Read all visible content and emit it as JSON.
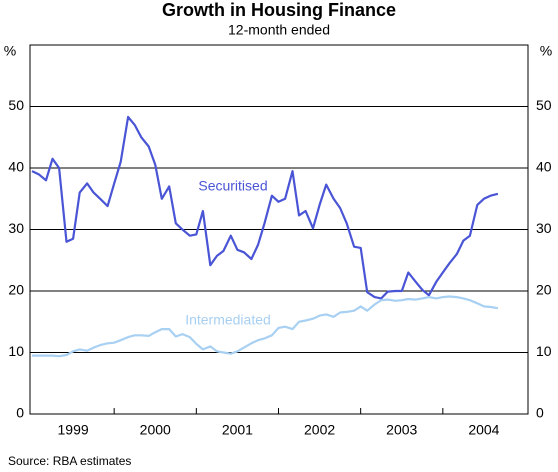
{
  "chart_data": {
    "type": "line",
    "title": "Growth in Housing Finance",
    "subtitle": "12-month ended",
    "y_unit": "%",
    "source": "Source: RBA estimates",
    "x": [
      1999,
      1999.08,
      1999.17,
      1999.25,
      1999.33,
      1999.42,
      1999.5,
      1999.58,
      1999.67,
      1999.75,
      1999.83,
      1999.92,
      2000,
      2000.08,
      2000.17,
      2000.25,
      2000.33,
      2000.42,
      2000.5,
      2000.58,
      2000.67,
      2000.75,
      2000.83,
      2000.92,
      2001,
      2001.08,
      2001.17,
      2001.25,
      2001.33,
      2001.42,
      2001.5,
      2001.58,
      2001.67,
      2001.75,
      2001.83,
      2001.92,
      2002,
      2002.08,
      2002.17,
      2002.25,
      2002.33,
      2002.42,
      2002.5,
      2002.58,
      2002.67,
      2002.75,
      2002.83,
      2002.92,
      2003,
      2003.08,
      2003.17,
      2003.25,
      2003.33,
      2003.42,
      2003.5,
      2003.58,
      2003.67,
      2003.75,
      2003.83,
      2003.92,
      2004,
      2004.08,
      2004.17,
      2004.25,
      2004.33,
      2004.42,
      2004.5,
      2004.58,
      2004.67
    ],
    "series": [
      {
        "name": "Securitised",
        "color": "#4a55d6",
        "values": [
          39.5,
          39,
          38,
          41.5,
          40,
          28,
          28.5,
          36,
          37.5,
          36,
          35,
          33.8,
          37.5,
          41,
          48.3,
          47,
          45,
          43.5,
          40.5,
          35,
          37,
          31,
          30,
          29,
          29.2,
          33,
          24.2,
          25.7,
          26.5,
          29,
          26.7,
          26.3,
          25.2,
          27.5,
          31,
          35.5,
          34.5,
          35,
          39.5,
          32.3,
          33,
          30.2,
          34,
          37.3,
          35,
          33.5,
          31,
          27.2,
          27,
          19.8,
          19,
          18.8,
          19.9,
          20,
          20,
          23,
          21.5,
          20.2,
          19.3,
          21.5,
          23,
          24.5,
          26,
          28.2,
          29,
          34,
          35,
          35.5,
          35.8
        ]
      },
      {
        "name": "Intermediated",
        "color": "#a8d0f2",
        "values": [
          9.5,
          9.5,
          9.5,
          9.5,
          9.4,
          9.6,
          10.2,
          10.5,
          10.3,
          10.8,
          11.2,
          11.5,
          11.6,
          12.0,
          12.5,
          12.8,
          12.8,
          12.7,
          13.3,
          13.8,
          13.8,
          12.6,
          13.0,
          12.5,
          11.4,
          10.5,
          11.0,
          10.2,
          10.0,
          9.8,
          10.2,
          10.8,
          11.5,
          12.0,
          12.3,
          12.8,
          14.0,
          14.2,
          13.8,
          15.0,
          15.2,
          15.5,
          16.0,
          16.2,
          15.8,
          16.5,
          16.6,
          16.8,
          17.5,
          16.8,
          17.8,
          18.5,
          18.6,
          18.4,
          18.5,
          18.7,
          18.6,
          18.8,
          19.0,
          18.8,
          19.0,
          19.1,
          19.0,
          18.8,
          18.5,
          18.0,
          17.5,
          17.4,
          17.2
        ]
      }
    ],
    "xlim": [
      1999,
      2005
    ],
    "xticks": [
      {
        "value": 1999.5,
        "label": "1999"
      },
      {
        "value": 2000.5,
        "label": "2000"
      },
      {
        "value": 2001.5,
        "label": "2001"
      },
      {
        "value": 2002.5,
        "label": "2002"
      },
      {
        "value": 2003.5,
        "label": "2003"
      },
      {
        "value": 2004.5,
        "label": "2004"
      }
    ],
    "ylim": [
      0,
      60
    ],
    "yticks": [
      0,
      10,
      20,
      30,
      40,
      50
    ],
    "grid": true
  }
}
